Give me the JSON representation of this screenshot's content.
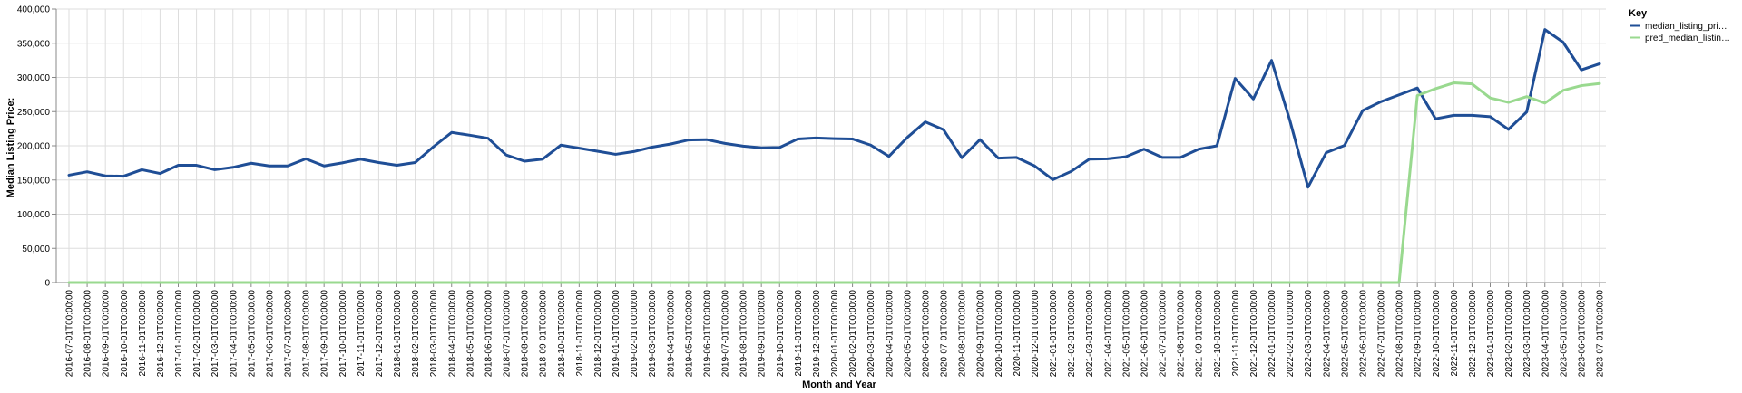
{
  "chart_data": {
    "type": "line",
    "xlabel": "Month and Year",
    "ylabel": "Median Listing Price:",
    "ylim": [
      0,
      400000
    ],
    "yticks": [
      "0",
      "50,000",
      "100,000",
      "150,000",
      "200,000",
      "250,000",
      "300,000",
      "350,000",
      "400,000"
    ],
    "grid": true,
    "legend_position": "top-right",
    "legend_title": "Key",
    "x": [
      "2016-07-01T00:00:00",
      "2016-08-01T00:00:00",
      "2016-09-01T00:00:00",
      "2016-10-01T00:00:00",
      "2016-11-01T00:00:00",
      "2016-12-01T00:00:00",
      "2017-01-01T00:00:00",
      "2017-02-01T00:00:00",
      "2017-03-01T00:00:00",
      "2017-04-01T00:00:00",
      "2017-05-01T00:00:00",
      "2017-06-01T00:00:00",
      "2017-07-01T00:00:00",
      "2017-08-01T00:00:00",
      "2017-09-01T00:00:00",
      "2017-10-01T00:00:00",
      "2017-11-01T00:00:00",
      "2017-12-01T00:00:00",
      "2018-01-01T00:00:00",
      "2018-02-01T00:00:00",
      "2018-03-01T00:00:00",
      "2018-04-01T00:00:00",
      "2018-05-01T00:00:00",
      "2018-06-01T00:00:00",
      "2018-07-01T00:00:00",
      "2018-08-01T00:00:00",
      "2018-09-01T00:00:00",
      "2018-10-01T00:00:00",
      "2018-11-01T00:00:00",
      "2018-12-01T00:00:00",
      "2019-01-01T00:00:00",
      "2019-02-01T00:00:00",
      "2019-03-01T00:00:00",
      "2019-04-01T00:00:00",
      "2019-05-01T00:00:00",
      "2019-06-01T00:00:00",
      "2019-07-01T00:00:00",
      "2019-08-01T00:00:00",
      "2019-09-01T00:00:00",
      "2019-10-01T00:00:00",
      "2019-11-01T00:00:00",
      "2019-12-01T00:00:00",
      "2020-01-01T00:00:00",
      "2020-02-01T00:00:00",
      "2020-03-01T00:00:00",
      "2020-04-01T00:00:00",
      "2020-05-01T00:00:00",
      "2020-06-01T00:00:00",
      "2020-07-01T00:00:00",
      "2020-08-01T00:00:00",
      "2020-09-01T00:00:00",
      "2020-10-01T00:00:00",
      "2020-11-01T00:00:00",
      "2020-12-01T00:00:00",
      "2021-01-01T00:00:00",
      "2021-02-01T00:00:00",
      "2021-03-01T00:00:00",
      "2021-04-01T00:00:00",
      "2021-05-01T00:00:00",
      "2021-06-01T00:00:00",
      "2021-07-01T00:00:00",
      "2021-08-01T00:00:00",
      "2021-09-01T00:00:00",
      "2021-10-01T00:00:00",
      "2021-11-01T00:00:00",
      "2021-12-01T00:00:00",
      "2022-01-01T00:00:00",
      "2022-02-01T00:00:00",
      "2022-03-01T00:00:00",
      "2022-04-01T00:00:00",
      "2022-05-01T00:00:00",
      "2022-06-01T00:00:00",
      "2022-07-01T00:00:00",
      "2022-08-01T00:00:00",
      "2022-09-01T00:00:00",
      "2022-10-01T00:00:00",
      "2022-11-01T00:00:00",
      "2022-12-01T00:00:00",
      "2023-01-01T00:00:00",
      "2023-02-01T00:00:00",
      "2023-03-01T00:00:00",
      "2023-04-01T00:00:00",
      "2023-05-01T00:00:00",
      "2023-06-01T00:00:00",
      "2023-07-01T00:00:00"
    ],
    "series": [
      {
        "name": "median_listing_pri…",
        "color": "#1f4e96",
        "values": [
          157000,
          162000,
          156000,
          155500,
          165000,
          159500,
          171500,
          171500,
          165000,
          168500,
          174500,
          170500,
          170500,
          181000,
          170500,
          175000,
          180500,
          175500,
          171500,
          175500,
          198500,
          219500,
          215500,
          211000,
          186500,
          177500,
          180500,
          201000,
          196500,
          192000,
          187500,
          191500,
          198000,
          202500,
          208500,
          209000,
          203500,
          199500,
          197000,
          197500,
          210000,
          211500,
          210500,
          210000,
          201000,
          184500,
          212000,
          235000,
          223500,
          182500,
          209000,
          182000,
          183000,
          170500,
          150500,
          162500,
          180500,
          181000,
          184000,
          195000,
          183000,
          183000,
          195000,
          200000,
          298500,
          268500,
          325000,
          237500,
          139500,
          190000,
          200500,
          251500,
          264500,
          274500,
          284500,
          239500,
          244500,
          244500,
          242500,
          224000,
          249500,
          370000,
          351500,
          311000,
          320000
        ]
      },
      {
        "name": "pred_median_listin…",
        "color": "#99d98f",
        "values": [
          0,
          0,
          0,
          0,
          0,
          0,
          0,
          0,
          0,
          0,
          0,
          0,
          0,
          0,
          0,
          0,
          0,
          0,
          0,
          0,
          0,
          0,
          0,
          0,
          0,
          0,
          0,
          0,
          0,
          0,
          0,
          0,
          0,
          0,
          0,
          0,
          0,
          0,
          0,
          0,
          0,
          0,
          0,
          0,
          0,
          0,
          0,
          0,
          0,
          0,
          0,
          0,
          0,
          0,
          0,
          0,
          0,
          0,
          0,
          0,
          0,
          0,
          0,
          0,
          0,
          0,
          0,
          0,
          0,
          0,
          0,
          0,
          0,
          0,
          273500,
          283500,
          292000,
          290500,
          270000,
          263500,
          272000,
          262500,
          281000,
          288000,
          291000
        ]
      }
    ]
  }
}
